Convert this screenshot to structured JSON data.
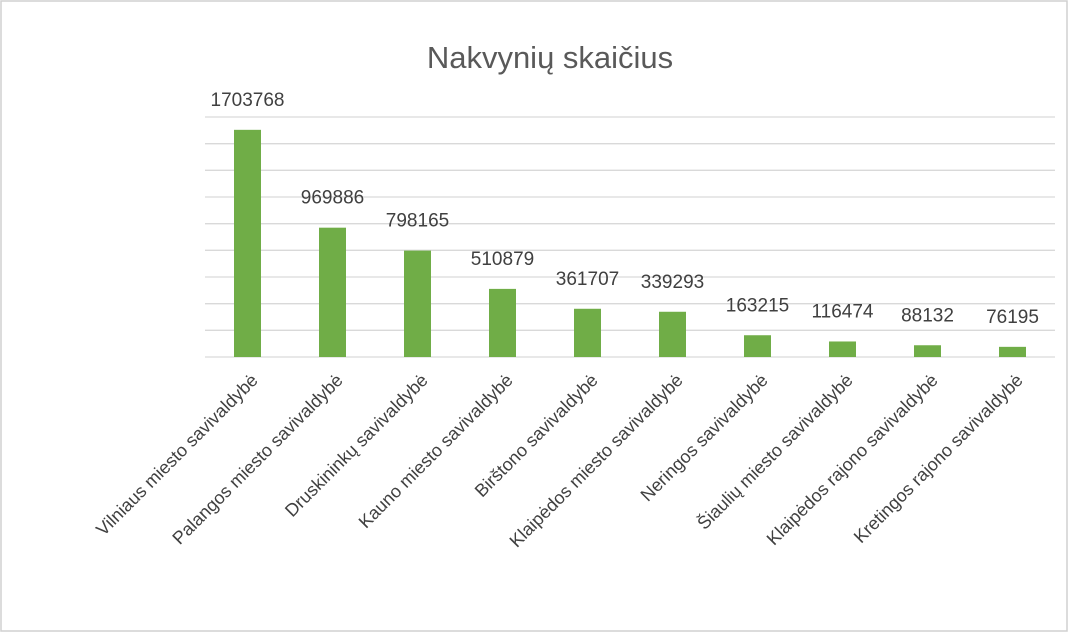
{
  "chart_data": {
    "type": "bar",
    "title": "Nakvynių skaičius",
    "categories": [
      "Vilniaus miesto savivaldybė",
      "Palangos miesto savivaldybė",
      "Druskininkų savivaldybė",
      "Kauno miesto savivaldybė",
      "Birštono savivaldybė",
      "Klaipėdos miesto savivaldybė",
      "Neringos savivaldybė",
      "Šiaulių miesto savivaldybė",
      "Klaipėdos rajono savivaldybė",
      "Kretingos rajono savivaldybė"
    ],
    "values": [
      1703768,
      969886,
      798165,
      510879,
      361707,
      339293,
      163215,
      116474,
      88132,
      76195
    ],
    "color": "#70ad47",
    "ylim": [
      0,
      1800000
    ],
    "yticks": [
      0,
      200000,
      400000,
      600000,
      800000,
      1000000,
      1200000,
      1400000,
      1600000,
      1800000
    ],
    "grid": true
  }
}
